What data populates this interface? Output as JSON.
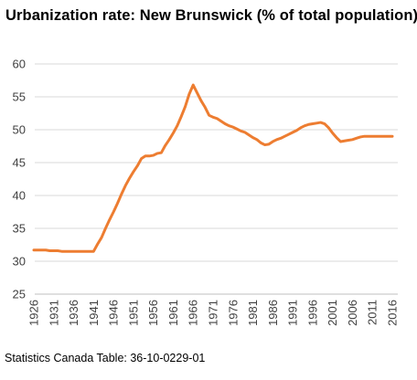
{
  "chart_data": {
    "type": "line",
    "title": "Urbanization rate: New Brunswick (% of total population)",
    "source": "Statistics Canada Table: 36-10-0229-01",
    "xlabel": "",
    "ylabel": "",
    "xlim": [
      1926,
      2016
    ],
    "ylim": [
      25,
      60
    ],
    "y_ticks": [
      "25",
      "30",
      "35",
      "40",
      "45",
      "50",
      "55",
      "60"
    ],
    "x_ticks": [
      "1926",
      "1931",
      "1936",
      "1941",
      "1946",
      "1951",
      "1956",
      "1961",
      "1966",
      "1971",
      "1976",
      "1981",
      "1986",
      "1991",
      "1996",
      "2001",
      "2006",
      "2011",
      "2016"
    ],
    "grid": "horizontal",
    "line_color": "#ED7D31",
    "series": [
      {
        "x": [
          1926,
          1927,
          1928,
          1929,
          1930,
          1931,
          1932,
          1933,
          1934,
          1935,
          1936,
          1937,
          1938,
          1939,
          1940,
          1941,
          1942,
          1943,
          1944,
          1945,
          1946,
          1947,
          1948,
          1949,
          1950,
          1951,
          1952,
          1953,
          1954,
          1955,
          1956,
          1957,
          1958,
          1959,
          1960,
          1961,
          1962,
          1963,
          1964,
          1965,
          1966,
          1967,
          1968,
          1969,
          1970,
          1971,
          1972,
          1973,
          1974,
          1975,
          1976,
          1977,
          1978,
          1979,
          1980,
          1981,
          1982,
          1983,
          1984,
          1985,
          1986,
          1987,
          1988,
          1989,
          1990,
          1991,
          1992,
          1993,
          1994,
          1995,
          1996,
          1997,
          1998,
          1999,
          2000,
          2001,
          2002,
          2003,
          2004,
          2005,
          2006,
          2007,
          2008,
          2009,
          2010,
          2011,
          2012,
          2013,
          2014,
          2015,
          2016
        ],
        "y": [
          31.7,
          31.7,
          31.7,
          31.7,
          31.6,
          31.6,
          31.6,
          31.5,
          31.5,
          31.5,
          31.5,
          31.5,
          31.5,
          31.5,
          31.5,
          31.5,
          32.6,
          33.6,
          35.0,
          36.3,
          37.5,
          38.8,
          40.2,
          41.5,
          42.6,
          43.6,
          44.5,
          45.6,
          46.0,
          46.0,
          46.1,
          46.4,
          46.5,
          47.6,
          48.5,
          49.5,
          50.6,
          52.0,
          53.5,
          55.4,
          56.8,
          55.6,
          54.4,
          53.4,
          52.2,
          51.9,
          51.7,
          51.3,
          50.9,
          50.6,
          50.4,
          50.1,
          49.8,
          49.6,
          49.2,
          48.8,
          48.5,
          48.0,
          47.7,
          47.8,
          48.2,
          48.5,
          48.7,
          49.0,
          49.3,
          49.6,
          49.9,
          50.3,
          50.6,
          50.8,
          50.9,
          51.0,
          51.1,
          50.9,
          50.3,
          49.5,
          48.8,
          48.2,
          48.3,
          48.4,
          48.5,
          48.7,
          48.9,
          49.0,
          49.0,
          49.0,
          49.0,
          49.0,
          49.0,
          49.0,
          49.0
        ]
      }
    ]
  }
}
